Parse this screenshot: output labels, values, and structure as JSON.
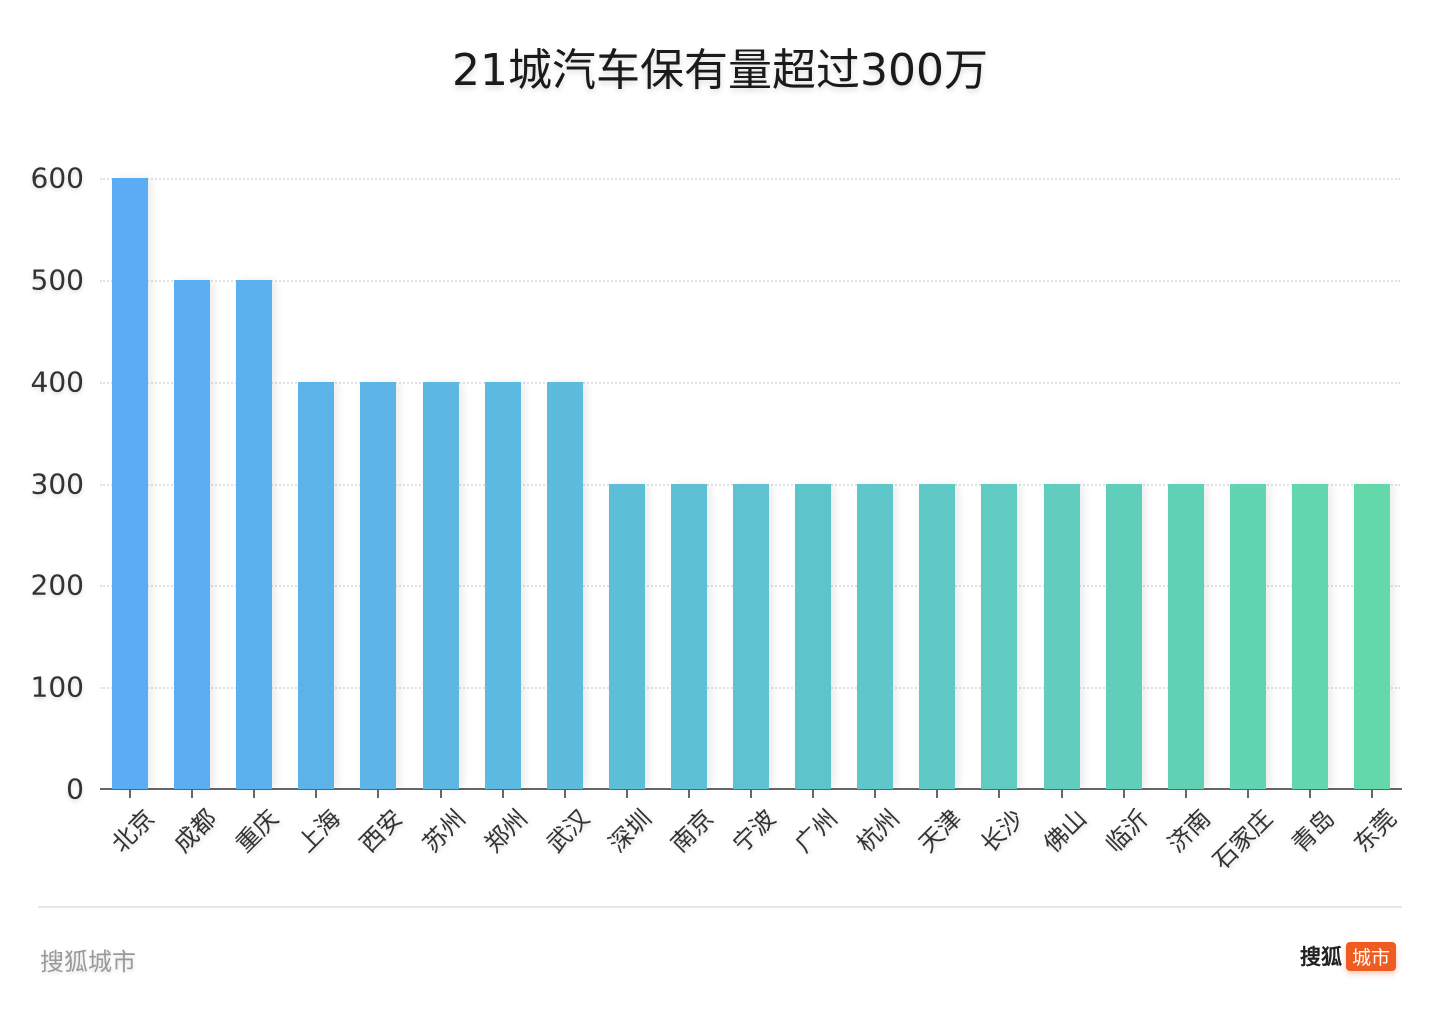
{
  "title": "21城汽车保有量超过300万",
  "footer": {
    "source_text": "搜狐城市",
    "logo_main": "搜狐",
    "logo_badge": "城市",
    "logo_badge_color": "#ee5c21"
  },
  "chart_data": {
    "type": "bar",
    "title": "21城汽车保有量超过300万",
    "xlabel": "",
    "ylabel": "",
    "ylim": [
      0,
      600
    ],
    "yticks": [
      0,
      100,
      200,
      300,
      400,
      500,
      600
    ],
    "grid": true,
    "legend": null,
    "categories": [
      "北京",
      "成都",
      "重庆",
      "上海",
      "西安",
      "苏州",
      "郑州",
      "武汉",
      "深圳",
      "南京",
      "宁波",
      "广州",
      "杭州",
      "天津",
      "长沙",
      "佛山",
      "临沂",
      "济南",
      "石家庄",
      "青岛",
      "东莞"
    ],
    "values": [
      600,
      500,
      500,
      400,
      400,
      400,
      400,
      400,
      300,
      300,
      300,
      300,
      300,
      300,
      300,
      300,
      300,
      300,
      300,
      300,
      300
    ],
    "color_gradient": [
      "#5aacf5",
      "#62d8ab"
    ]
  }
}
